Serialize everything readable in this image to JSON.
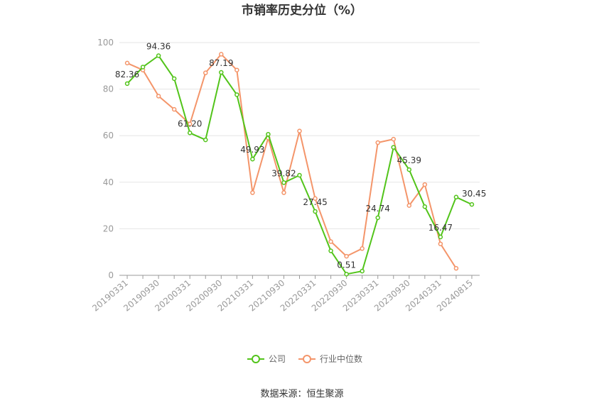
{
  "chart_data": {
    "type": "line",
    "title": "市销率历史分位（%）",
    "x": [
      "20190331",
      "20190630",
      "20190930",
      "20191231",
      "20200331",
      "20200630",
      "20200930",
      "20201231",
      "20210331",
      "20210630",
      "20210930",
      "20211231",
      "20220331",
      "20220630",
      "20220930",
      "20221231",
      "20230331",
      "20230630",
      "20230930",
      "20231231",
      "20240331",
      "20240630",
      "20240815"
    ],
    "x_tick_labels": [
      "20190331",
      "20190930",
      "20200331",
      "20200930",
      "20210331",
      "20210930",
      "20220331",
      "20220930",
      "20230331",
      "20230930",
      "20240331",
      "20240815"
    ],
    "y_ticks": [
      0,
      20,
      40,
      60,
      80,
      100
    ],
    "ylim": [
      0,
      100
    ],
    "grid": true,
    "legend_position": "bottom",
    "series": [
      {
        "name": "公司",
        "color": "#52c41a",
        "values": [
          82.36,
          89.5,
          94.36,
          84.5,
          61.2,
          58.2,
          87.19,
          77.6,
          49.93,
          60.6,
          39.82,
          43.0,
          27.45,
          10.5,
          0.51,
          1.8,
          24.74,
          55.0,
          45.39,
          29.5,
          16.47,
          33.6,
          30.45
        ],
        "labels": {
          "0": "82.36",
          "2": "94.36",
          "4": "61.20",
          "6": "87.19",
          "8": "49.93",
          "10": "39.82",
          "12": "27.45",
          "14": "0.51",
          "16": "24.74",
          "18": "45.39",
          "20": "16.47",
          "22": "30.45"
        }
      },
      {
        "name": "行业中位数",
        "color": "#f4956a",
        "values": [
          91.2,
          88.2,
          77.0,
          71.3,
          65.0,
          87.0,
          95.0,
          88.2,
          35.5,
          59.0,
          35.5,
          62.0,
          33.0,
          14.5,
          8.2,
          11.5,
          57.0,
          58.5,
          30.0,
          39.0,
          13.5,
          3.0,
          null
        ]
      }
    ]
  },
  "source": "数据来源：恒生聚源"
}
